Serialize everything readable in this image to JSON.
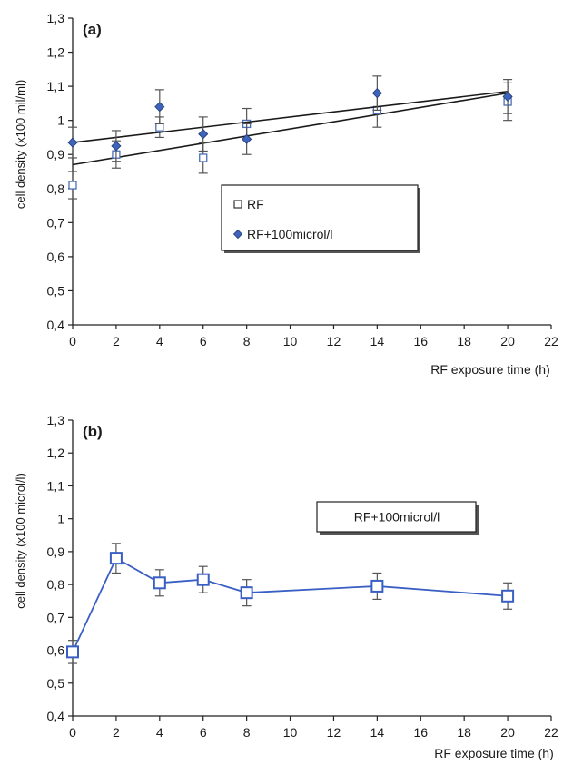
{
  "chart_data": [
    {
      "type": "scatter",
      "panel_label": "(a)",
      "xlabel": "RF exposure time (h)",
      "ylabel": "cell density (x100 mil/ml)",
      "xlim": [
        0,
        22
      ],
      "ylim": [
        0.4,
        1.3
      ],
      "x_ticks": [
        0,
        2,
        4,
        6,
        8,
        10,
        12,
        14,
        16,
        18,
        20,
        22
      ],
      "y_ticks": [
        "0,4",
        "0,5",
        "0,6",
        "0,7",
        "0,8",
        "0,9",
        "1",
        "1,1",
        "1,2",
        "1,3"
      ],
      "legend_position": "center",
      "series": [
        {
          "name": "RF",
          "marker": "open-square",
          "color": "#4a6fb5",
          "x": [
            0,
            2,
            4,
            6,
            8,
            14,
            20
          ],
          "y": [
            0.81,
            0.9,
            0.98,
            0.89,
            0.99,
            1.03,
            1.055
          ],
          "error": [
            0.04,
            0.04,
            0.03,
            0.045,
            0.045,
            0.05,
            0.055
          ],
          "trendline": {
            "x": [
              0,
              20
            ],
            "y": [
              0.87,
              1.08
            ]
          }
        },
        {
          "name": "RF+100microl/l",
          "marker": "filled-diamond",
          "color": "#3e63b8",
          "x": [
            0,
            2,
            4,
            6,
            8,
            14,
            20
          ],
          "y": [
            0.935,
            0.925,
            1.04,
            0.96,
            0.945,
            1.08,
            1.07
          ],
          "error": [
            0.045,
            0.045,
            0.05,
            0.05,
            0.045,
            0.05,
            0.05
          ],
          "trendline": {
            "x": [
              0,
              20
            ],
            "y": [
              0.935,
              1.085
            ]
          }
        }
      ]
    },
    {
      "type": "line",
      "panel_label": "(b)",
      "xlabel": "RF exposure time (h)",
      "ylabel": "cell density (x100 microl/l)",
      "xlim": [
        0,
        22
      ],
      "ylim": [
        0.4,
        1.3
      ],
      "x_ticks": [
        0,
        2,
        4,
        6,
        8,
        10,
        12,
        14,
        16,
        18,
        20,
        22
      ],
      "y_ticks": [
        "0,4",
        "0,5",
        "0,6",
        "0,7",
        "0,8",
        "0,9",
        "1",
        "1,1",
        "1,2",
        "1,3"
      ],
      "legend_position": "center-right",
      "series": [
        {
          "name": "RF+100microl/l",
          "marker": "open-square",
          "color": "#3a5fc4",
          "x": [
            0,
            2,
            4,
            6,
            8,
            14,
            20
          ],
          "y": [
            0.595,
            0.88,
            0.805,
            0.815,
            0.775,
            0.795,
            0.765
          ],
          "error": [
            0.035,
            0.045,
            0.04,
            0.04,
            0.04,
            0.04,
            0.04
          ]
        }
      ]
    }
  ]
}
